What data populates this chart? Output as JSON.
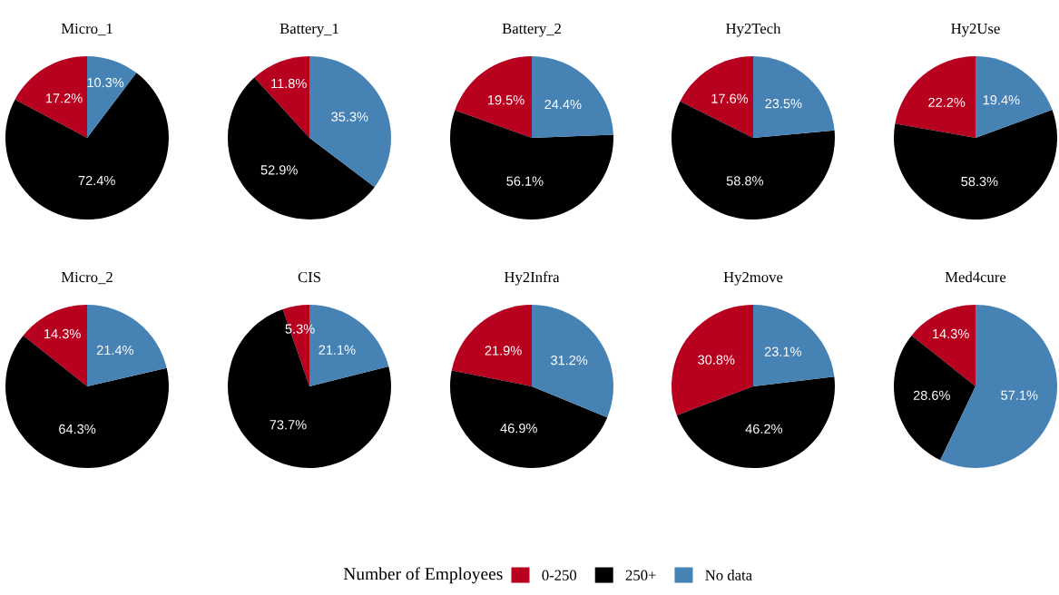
{
  "chart_data": [
    {
      "type": "pie",
      "title": "Micro_1",
      "categories": [
        "0-250",
        "250+",
        "No data"
      ],
      "values": [
        17.2,
        72.4,
        10.3
      ],
      "value_labels": [
        "17.2%",
        "72.4%",
        "10.3%"
      ],
      "colors": [
        "#b8001f",
        "#000000",
        "#4682b4"
      ],
      "legend": "bottom",
      "legend_title": "Number of Employees"
    },
    {
      "type": "pie",
      "title": "Battery_1",
      "values": [
        11.8,
        52.9,
        35.3
      ],
      "value_labels": [
        "11.8%",
        "52.9%",
        "35.3%"
      ],
      "colors": [
        "#b8001f",
        "#000000",
        "#4682b4"
      ]
    },
    {
      "type": "pie",
      "title": "Battery_2",
      "values": [
        19.5,
        56.1,
        24.4
      ],
      "value_labels": [
        "19.5%",
        "56.1%",
        "24.4%"
      ],
      "colors": [
        "#b8001f",
        "#000000",
        "#4682b4"
      ]
    },
    {
      "type": "pie",
      "title": "Hy2Tech",
      "values": [
        17.6,
        58.8,
        23.5
      ],
      "value_labels": [
        "17.6%",
        "58.8%",
        "23.5%"
      ],
      "colors": [
        "#b8001f",
        "#000000",
        "#4682b4"
      ]
    },
    {
      "type": "pie",
      "title": "Hy2Use",
      "values": [
        22.2,
        58.3,
        19.4
      ],
      "value_labels": [
        "22.2%",
        "58.3%",
        "19.4%"
      ],
      "colors": [
        "#b8001f",
        "#000000",
        "#4682b4"
      ]
    },
    {
      "type": "pie",
      "title": "Micro_2",
      "values": [
        14.3,
        64.3,
        21.4
      ],
      "value_labels": [
        "14.3%",
        "64.3%",
        "21.4%"
      ],
      "colors": [
        "#b8001f",
        "#000000",
        "#4682b4"
      ]
    },
    {
      "type": "pie",
      "title": "CIS",
      "values": [
        5.3,
        73.7,
        21.1
      ],
      "value_labels": [
        "5.3%",
        "73.7%",
        "21.1%"
      ],
      "colors": [
        "#b8001f",
        "#000000",
        "#4682b4"
      ]
    },
    {
      "type": "pie",
      "title": "Hy2Infra",
      "values": [
        21.9,
        46.9,
        31.2
      ],
      "value_labels": [
        "21.9%",
        "46.9%",
        "31.2%"
      ],
      "colors": [
        "#b8001f",
        "#000000",
        "#4682b4"
      ]
    },
    {
      "type": "pie",
      "title": "Hy2move",
      "values": [
        30.8,
        46.2,
        23.1
      ],
      "value_labels": [
        "30.8%",
        "46.2%",
        "23.1%"
      ],
      "colors": [
        "#b8001f",
        "#000000",
        "#4682b4"
      ]
    },
    {
      "type": "pie",
      "title": "Med4cure",
      "values": [
        14.3,
        28.6,
        57.1
      ],
      "value_labels": [
        "14.3%",
        "28.6%",
        "57.1%"
      ],
      "colors": [
        "#b8001f",
        "#000000",
        "#4682b4"
      ]
    }
  ]
}
